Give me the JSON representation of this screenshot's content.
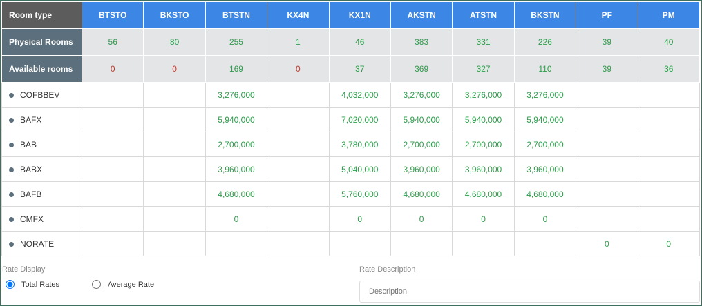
{
  "table": {
    "header": [
      "Room type",
      "BTSTO",
      "BKSTO",
      "BTSTN",
      "KX4N",
      "KX1N",
      "AKSTN",
      "ATSTN",
      "BKSTN",
      "PF",
      "PM"
    ],
    "rows": [
      {
        "label": "Physical Rooms",
        "values": [
          56,
          80,
          255,
          1,
          46,
          383,
          331,
          226,
          39,
          40
        ]
      },
      {
        "label": "Available rooms",
        "values": [
          0,
          0,
          169,
          0,
          37,
          369,
          327,
          110,
          39,
          36
        ]
      }
    ],
    "rate_rows": [
      {
        "label": "COFBBEV",
        "values": [
          null,
          null,
          "3,276,000",
          null,
          "4,032,000",
          "3,276,000",
          "3,276,000",
          "3,276,000",
          null,
          null
        ]
      },
      {
        "label": "BAFX",
        "values": [
          null,
          null,
          "5,940,000",
          null,
          "7,020,000",
          "5,940,000",
          "5,940,000",
          "5,940,000",
          null,
          null
        ]
      },
      {
        "label": "BAB",
        "values": [
          null,
          null,
          "2,700,000",
          null,
          "3,780,000",
          "2,700,000",
          "2,700,000",
          "2,700,000",
          null,
          null
        ]
      },
      {
        "label": "BABX",
        "values": [
          null,
          null,
          "3,960,000",
          null,
          "5,040,000",
          "3,960,000",
          "3,960,000",
          "3,960,000",
          null,
          null
        ]
      },
      {
        "label": "BAFB",
        "values": [
          null,
          null,
          "4,680,000",
          null,
          "5,760,000",
          "4,680,000",
          "4,680,000",
          "4,680,000",
          null,
          null
        ]
      },
      {
        "label": "CMFX",
        "values": [
          null,
          null,
          0,
          null,
          0,
          0,
          0,
          0,
          null,
          null
        ]
      },
      {
        "label": "NORATE",
        "values": [
          null,
          null,
          null,
          null,
          null,
          null,
          null,
          null,
          0,
          0
        ]
      }
    ]
  },
  "rate_display": {
    "label": "Rate Display",
    "options": [
      {
        "label": "Total Rates",
        "selected": true
      },
      {
        "label": "Average Rate",
        "selected": false
      }
    ]
  },
  "rate_description": {
    "label": "Rate Description",
    "placeholder": "Description"
  }
}
